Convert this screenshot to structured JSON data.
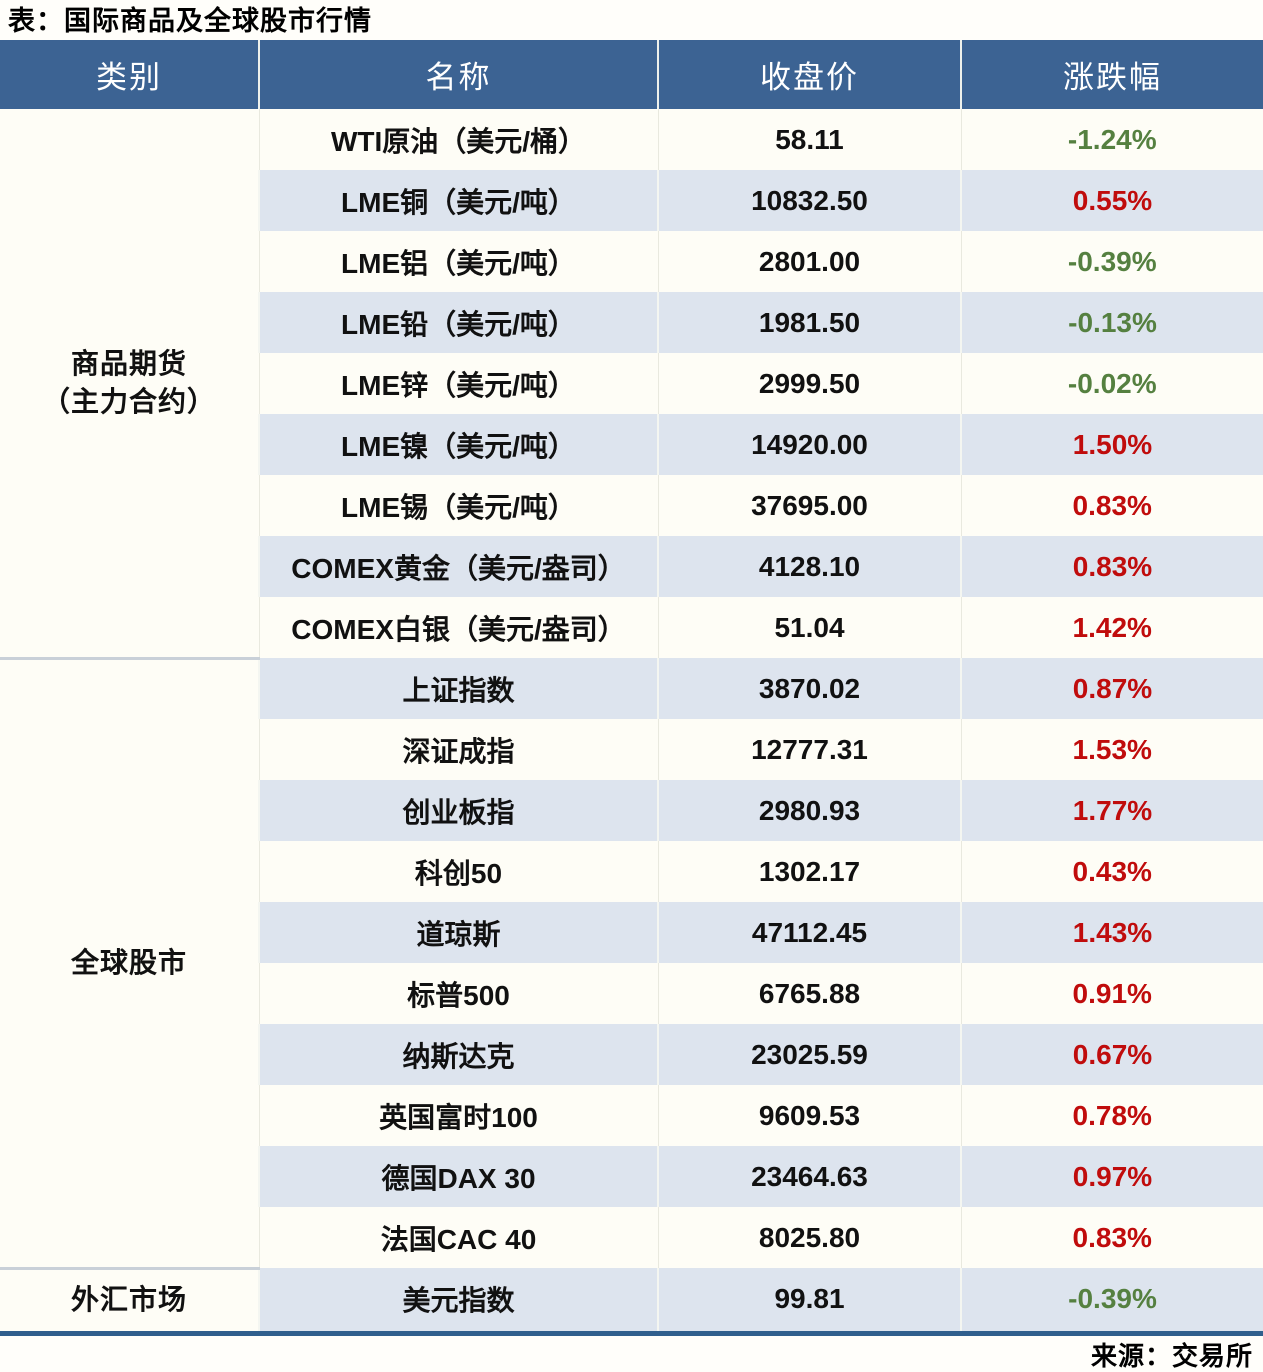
{
  "title": "表：国际商品及全球股市行情",
  "headers": [
    "类别",
    "名称",
    "收盘价",
    "涨跌幅"
  ],
  "groups": [
    {
      "category_lines": [
        "商品期货",
        "（主力合约）"
      ],
      "rows": [
        {
          "name": "WTI原油（美元/桶）",
          "close": "58.11",
          "change": "-1.24%",
          "direction": "down"
        },
        {
          "name": "LME铜（美元/吨）",
          "close": "10832.50",
          "change": "0.55%",
          "direction": "up"
        },
        {
          "name": "LME铝（美元/吨）",
          "close": "2801.00",
          "change": "-0.39%",
          "direction": "down"
        },
        {
          "name": "LME铅（美元/吨）",
          "close": "1981.50",
          "change": "-0.13%",
          "direction": "down"
        },
        {
          "name": "LME锌（美元/吨）",
          "close": "2999.50",
          "change": "-0.02%",
          "direction": "down"
        },
        {
          "name": "LME镍（美元/吨）",
          "close": "14920.00",
          "change": "1.50%",
          "direction": "up"
        },
        {
          "name": "LME锡（美元/吨）",
          "close": "37695.00",
          "change": "0.83%",
          "direction": "up"
        },
        {
          "name": "COMEX黄金（美元/盎司）",
          "close": "4128.10",
          "change": "0.83%",
          "direction": "up"
        },
        {
          "name": "COMEX白银（美元/盎司）",
          "close": "51.04",
          "change": "1.42%",
          "direction": "up"
        }
      ]
    },
    {
      "category_lines": [
        "全球股市"
      ],
      "rows": [
        {
          "name": "上证指数",
          "close": "3870.02",
          "change": "0.87%",
          "direction": "up"
        },
        {
          "name": "深证成指",
          "close": "12777.31",
          "change": "1.53%",
          "direction": "up"
        },
        {
          "name": "创业板指",
          "close": "2980.93",
          "change": "1.77%",
          "direction": "up"
        },
        {
          "name": "科创50",
          "close": "1302.17",
          "change": "0.43%",
          "direction": "up"
        },
        {
          "name": "道琼斯",
          "close": "47112.45",
          "change": "1.43%",
          "direction": "up"
        },
        {
          "name": "标普500",
          "close": "6765.88",
          "change": "0.91%",
          "direction": "up"
        },
        {
          "name": "纳斯达克",
          "close": "23025.59",
          "change": "0.67%",
          "direction": "up"
        },
        {
          "name": "英国富时100",
          "close": "9609.53",
          "change": "0.78%",
          "direction": "up"
        },
        {
          "name": "德国DAX 30",
          "close": "23464.63",
          "change": "0.97%",
          "direction": "up"
        },
        {
          "name": "法国CAC 40",
          "close": "8025.80",
          "change": "0.83%",
          "direction": "up"
        }
      ]
    },
    {
      "category_lines": [
        "外汇市场"
      ],
      "rows": [
        {
          "name": "美元指数",
          "close": "99.81",
          "change": "-0.39%",
          "direction": "down"
        }
      ]
    }
  ],
  "source": "来源：交易所",
  "colors": {
    "header_bg": "#3c6393",
    "header_text": "#ffffff",
    "row_bg": "#fefdf6",
    "row_alt_bg": "#dde4ee",
    "up_red": "#c00c0c",
    "down_green": "#558040",
    "bottom_border": "#305f8d",
    "group_separator": "#c9d0d8"
  }
}
